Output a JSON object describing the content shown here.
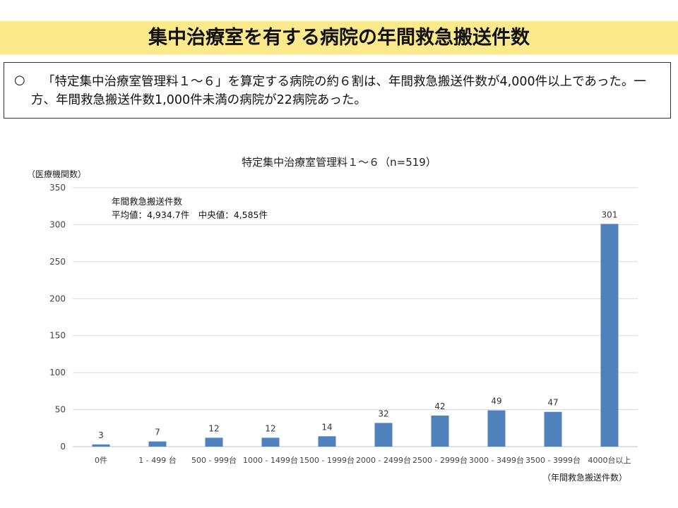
{
  "header": {
    "title": "集中治療室を有する病院の年間救急搬送件数"
  },
  "note": {
    "bullet": "○",
    "text": "「特定集中治療室管理料１～６」を算定する病院の約６割は、年間救急搬送件数が4,000件以上であった。一方、年間救急搬送件数1,000件未満の病院が22病院あった。"
  },
  "colors": {
    "title_band": "#fbe98b",
    "bar": "#4f81bd",
    "grid": "#d9d9d9"
  },
  "chart_data": {
    "type": "bar",
    "title": "特定集中治療室管理料１～６（n=519）",
    "ylabel": "（医療機関数）",
    "xlabel": "（年間救急搬送件数）",
    "annotation_line1": "年間救急搬送件数",
    "annotation_line2": "平均値：4,934.7件　中央値：4,585件",
    "categories": [
      "0件",
      "1 - 499 台",
      "500 - 999台",
      "1000 - 1499台",
      "1500 - 1999台",
      "2000 - 2499台",
      "2500 - 2999台",
      "3000 - 3499台",
      "3500 - 3999台",
      "4000台以上"
    ],
    "values": [
      3,
      7,
      12,
      12,
      14,
      32,
      42,
      49,
      47,
      301
    ],
    "ylim": [
      0,
      350
    ],
    "yticks": [
      0,
      50,
      100,
      150,
      200,
      250,
      300,
      350
    ],
    "grid": true,
    "data_labels": true
  }
}
